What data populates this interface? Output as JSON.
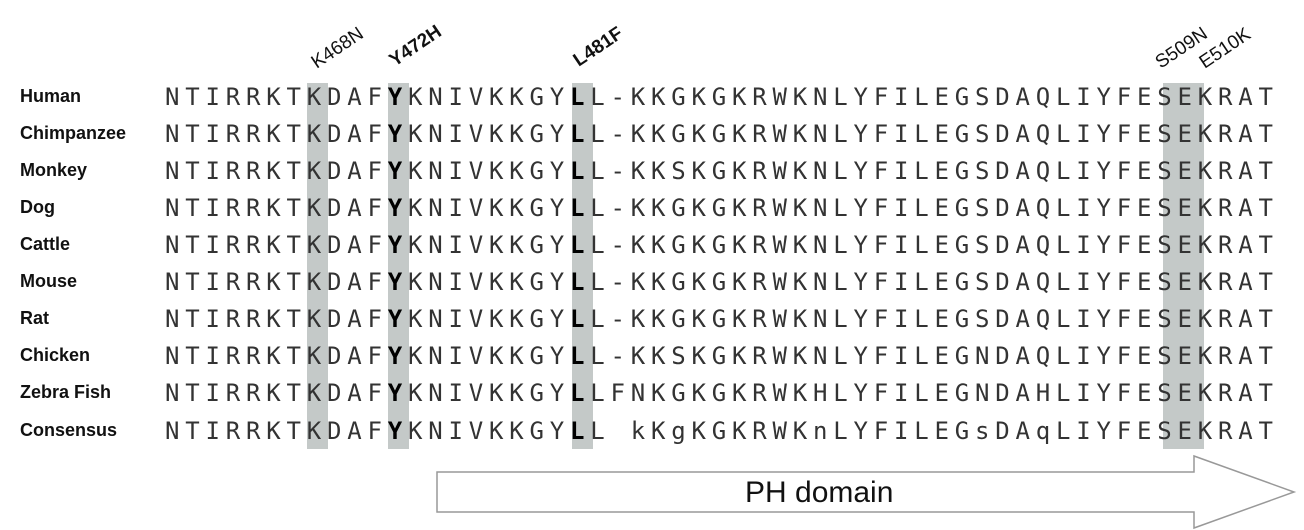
{
  "mutations": [
    "K468N",
    "Y472H",
    "L481F",
    "S509N",
    "E510K"
  ],
  "species": [
    "Human",
    "Chimpanzee",
    "Monkey",
    "Dog",
    "Cattle",
    "Mouse",
    "Rat",
    "Chicken",
    "Zebra Fish",
    "Consensus"
  ],
  "sequences": [
    "NTIRRKTKDAFYKNIVKKGYLL-KKGKGKRWKNLYFILEGSDAQLIYFESEKRAT",
    "NTIRRKTKDAFYKNIVKKGYLL-KKGKGKRWKNLYFILEGSDAQLIYFESEKRAT",
    "NTIRRKTKDAFYKNIVKKGYLL-KKSKGKRWKNLYFILEGSDAQLIYFESEKRAT",
    "NTIRRKTKDAFYKNIVKKGYLL-KKGKGKRWKNLYFILEGSDAQLIYFESEKRAT",
    "NTIRRKTKDAFYKNIVKKGYLL-KKGKGKRWKNLYFILEGSDAQLIYFESEKRAT",
    "NTIRRKTKDAFYKNIVKKGYLL-KKGKGKRWKNLYFILEGSDAQLIYFESEKRAT",
    "NTIRRKTKDAFYKNIVKKGYLL-KKGKGKRWKNLYFILEGSDAQLIYFESEKRAT",
    "NTIRRKTKDAFYKNIVKKGYLL-KKSKGKRWKNLYFILEGNDAQLIYFESEKRAT",
    "NTIRRKTKDAFYKNIVKKGYLLFNKGKGKRWKHLYFILEGNDAHLIYFESEKRAT",
    "NTIRRKTKDAFYKNIVKKGYLL kKgKGKRWKnLYFILEGsDAqLIYFESEKRAT"
  ],
  "domain_label": "PH domain",
  "colors": {
    "highlight": "#c4c9c8",
    "text": "#333333",
    "arrow_stroke": "#999999"
  }
}
